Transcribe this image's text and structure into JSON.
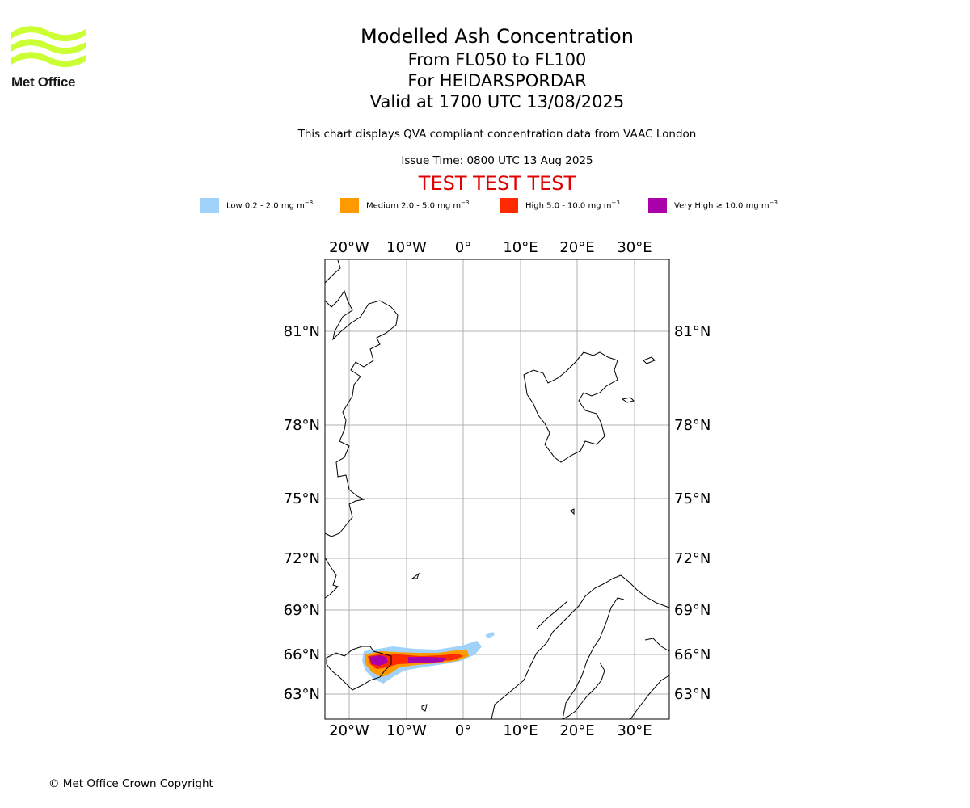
{
  "logo": {
    "text": "Met Office",
    "color": "#ccff33"
  },
  "title": {
    "line1": "Modelled Ash Concentration",
    "line2": "From FL050 to FL100",
    "line3": "For HEIDARSPORDAR",
    "line4": "Valid at 1700 UTC 13/08/2025"
  },
  "subtitle": "This chart displays QVA compliant concentration data from VAAC London",
  "issue_time": "Issue Time: 0800 UTC 13 Aug 2025",
  "test_banner": "TEST TEST TEST",
  "legend": [
    {
      "label": "Low 0.2 - 2.0 mg m",
      "unit_exp": "−3",
      "color": "#a0d2fa"
    },
    {
      "label": "Medium 2.0 - 5.0 mg m",
      "unit_exp": "−3",
      "color": "#ff9900"
    },
    {
      "label": "High 5.0 - 10.0 mg m",
      "unit_exp": "−3",
      "color": "#ff2a00"
    },
    {
      "label": "Very High  ≥  10.0 mg m",
      "unit_exp": "−3",
      "color": "#aa00aa"
    }
  ],
  "map": {
    "lon_labels": [
      "20°W",
      "10°W",
      "0°",
      "10°E",
      "20°E",
      "30°E"
    ],
    "lat_labels": [
      "81°N",
      "78°N",
      "75°N",
      "72°N",
      "69°N",
      "66°N",
      "63°N"
    ],
    "grid_color": "#b0b0b0"
  },
  "copyright": "© Met Office Crown Copyright"
}
